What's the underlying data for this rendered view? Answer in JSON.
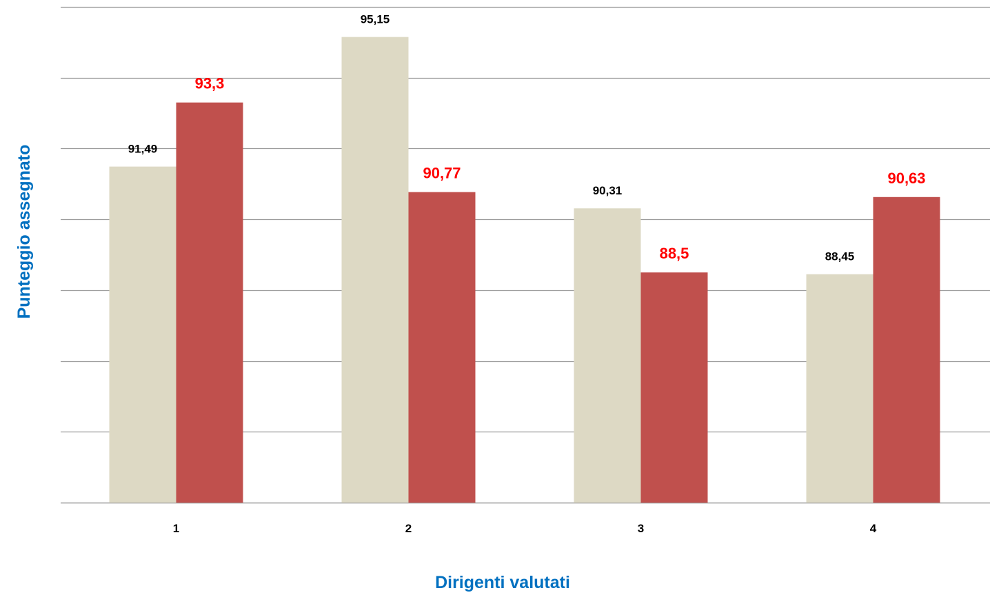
{
  "chart_data": {
    "type": "bar",
    "title": "",
    "xlabel": "Dirigenti valutati",
    "ylabel": "Punteggio assegnato",
    "categories": [
      "1",
      "2",
      "3",
      "4"
    ],
    "series": [
      {
        "values": [
          91.49,
          95.15,
          90.31,
          88.45
        ],
        "labels": [
          "91,49",
          "95,15",
          "90,31",
          "88,45"
        ]
      },
      {
        "values": [
          93.3,
          90.77,
          88.5,
          90.63
        ],
        "labels": [
          "93,3",
          "90,77",
          "88,5",
          "90,63"
        ]
      }
    ],
    "ylim": [
      82,
      96
    ],
    "yticks": [
      82,
      84,
      86,
      88,
      90,
      92,
      94,
      96
    ],
    "grid": true,
    "legend": "none"
  },
  "colors": {
    "series_a": "#ddd9c4",
    "series_b": "#c0504d",
    "series_b_label": "#ff0000",
    "axis_title": "#0070c0",
    "gridline": "#9a9a9a"
  }
}
